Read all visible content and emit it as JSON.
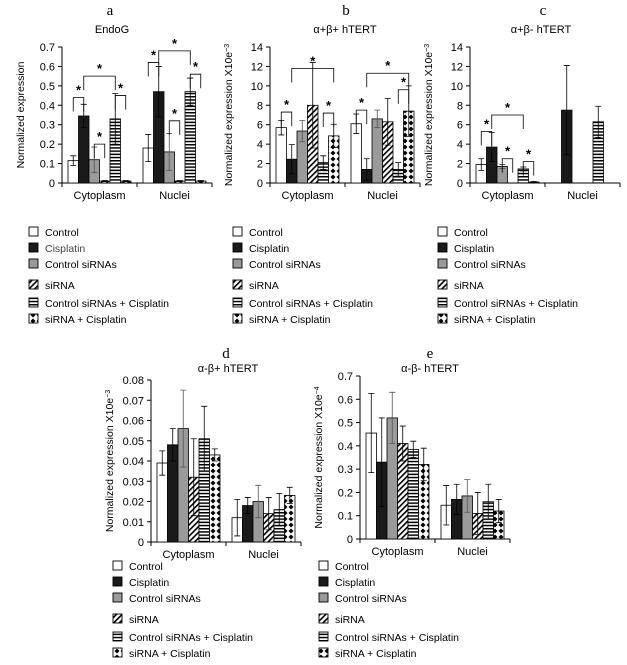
{
  "legend_labels": [
    "Control",
    "Cisplatin",
    "Control siRNAs",
    "siRNA",
    "Control siRNAs + Cisplatin",
    "siRNA + Cisplatin"
  ],
  "series_styles": {
    "Control": "#ffffff",
    "Cisplatin": "#1a1a1a",
    "Control siRNAs": "#9a9a9a",
    "siRNA": "diagonal-hatch",
    "Control siRNAs + Cisplatin": "horizontal-stripes",
    "siRNA + Cisplatin": "diamond-grid"
  },
  "chart_data": [
    {
      "panel": "a",
      "type": "bar",
      "title": "EndoG",
      "ylabel": "Normalized expression",
      "ylabel_sup": "",
      "ylim": [
        0,
        0.7
      ],
      "ytick_step": 0.1,
      "ytick_decimals": 1,
      "categories": [
        "Cytoplasm",
        "Nuclei"
      ],
      "series": [
        {
          "name": "Control",
          "values": [
            0.115,
            0.18
          ],
          "err": [
            0.025,
            0.07
          ]
        },
        {
          "name": "Cisplatin",
          "values": [
            0.345,
            0.47
          ],
          "err": [
            0.06,
            0.13
          ]
        },
        {
          "name": "Control siRNAs",
          "values": [
            0.12,
            0.16
          ],
          "err": [
            0.065,
            0.095
          ]
        },
        {
          "name": "siRNA",
          "values": [
            0.01,
            0.01
          ],
          "err": [
            0.003,
            0.003
          ]
        },
        {
          "name": "Control siRNAs + Cisplatin",
          "values": [
            0.33,
            0.47
          ],
          "err": [
            0.13,
            0.07
          ]
        },
        {
          "name": "siRNA + Cisplatin",
          "values": [
            0.01,
            0.01
          ],
          "err": [
            0.003,
            0.003
          ]
        }
      ],
      "significance": [
        [
          0,
          0,
          1,
          0.44
        ],
        [
          0,
          1,
          4,
          0.55
        ],
        [
          0,
          2,
          3,
          0.2
        ],
        [
          0,
          4,
          5,
          0.45
        ],
        [
          1,
          0,
          1,
          0.62
        ],
        [
          1,
          1,
          4,
          0.68
        ],
        [
          1,
          2,
          3,
          0.32
        ],
        [
          1,
          4,
          5,
          0.56
        ]
      ],
      "significance_mark": "*"
    },
    {
      "panel": "b",
      "type": "bar",
      "title": "α+β+ hTERT",
      "ylabel": "Normalized expression X10e",
      "ylabel_sup": "−3",
      "ylim": [
        0,
        14
      ],
      "ytick_step": 2,
      "ytick_decimals": 0,
      "categories": [
        "Cytoplasm",
        "Nuclei"
      ],
      "series": [
        {
          "name": "Control",
          "values": [
            5.7,
            6.1
          ],
          "err": [
            0.75,
            1.0
          ]
        },
        {
          "name": "Cisplatin",
          "values": [
            2.45,
            1.4
          ],
          "err": [
            1.5,
            1.1
          ]
        },
        {
          "name": "Control siRNAs",
          "values": [
            5.35,
            6.6
          ],
          "err": [
            1.1,
            0.9
          ]
        },
        {
          "name": "siRNA",
          "values": [
            8.0,
            6.3
          ],
          "err": [
            4.4,
            2.4
          ]
        },
        {
          "name": "Control siRNAs + Cisplatin",
          "values": [
            2.1,
            1.4
          ],
          "err": [
            0.7,
            0.7
          ]
        },
        {
          "name": "siRNA + Cisplatin",
          "values": [
            4.85,
            7.4
          ],
          "err": [
            1.2,
            2.6
          ]
        }
      ],
      "significance": [
        [
          0,
          0,
          1,
          7.3
        ],
        [
          0,
          1,
          5,
          11.8
        ],
        [
          0,
          4,
          5,
          7.2
        ],
        [
          1,
          0,
          1,
          7.5
        ],
        [
          1,
          1,
          5,
          11.3
        ],
        [
          1,
          4,
          5,
          9.6
        ]
      ],
      "significance_mark": "*"
    },
    {
      "panel": "c",
      "type": "bar",
      "title": "α+β- hTERT",
      "ylabel": "Normalized expression X10e",
      "ylabel_sup": "−3",
      "ylim": [
        0,
        14
      ],
      "ytick_step": 2,
      "ytick_decimals": 0,
      "categories": [
        "Cytoplasm",
        "Nuclei"
      ],
      "series": [
        {
          "name": "Control",
          "values": [
            1.9,
            0
          ],
          "err": [
            0.6,
            0
          ]
        },
        {
          "name": "Cisplatin",
          "values": [
            3.7,
            7.5
          ],
          "err": [
            1.5,
            4.6
          ]
        },
        {
          "name": "Control siRNAs",
          "values": [
            1.7,
            0
          ],
          "err": [
            0.2,
            0
          ]
        },
        {
          "name": "siRNA",
          "values": [
            0,
            0
          ],
          "err": [
            0,
            0
          ]
        },
        {
          "name": "Control siRNAs + Cisplatin",
          "values": [
            1.45,
            6.3
          ],
          "err": [
            0.2,
            1.6
          ]
        },
        {
          "name": "siRNA + Cisplatin",
          "values": [
            0.1,
            0
          ],
          "err": [
            0.05,
            0
          ]
        }
      ],
      "significance": [
        [
          0,
          0,
          1,
          5.3
        ],
        [
          0,
          1,
          4,
          7.0
        ],
        [
          0,
          2,
          3,
          2.5
        ],
        [
          0,
          4,
          5,
          2.2
        ]
      ],
      "significance_mark": "*"
    },
    {
      "panel": "d",
      "type": "bar",
      "title": "α-β+ hTERT",
      "ylabel": "Normalized expression X10e",
      "ylabel_sup": "−3",
      "ylim": [
        0,
        0.08
      ],
      "ytick_step": 0.01,
      "ytick_decimals": 2,
      "categories": [
        "Cytoplasm",
        "Nuclei"
      ],
      "series": [
        {
          "name": "Control",
          "values": [
            0.039,
            0.012
          ],
          "err": [
            0.006,
            0.009
          ]
        },
        {
          "name": "Cisplatin",
          "values": [
            0.048,
            0.018
          ],
          "err": [
            0.008,
            0.004
          ]
        },
        {
          "name": "Control siRNAs",
          "values": [
            0.056,
            0.02
          ],
          "err": [
            0.019,
            0.008
          ]
        },
        {
          "name": "siRNA",
          "values": [
            0.032,
            0.014
          ],
          "err": [
            0.019,
            0.008
          ]
        },
        {
          "name": "Control siRNAs + Cisplatin",
          "values": [
            0.051,
            0.016
          ],
          "err": [
            0.016,
            0.008
          ]
        },
        {
          "name": "siRNA + Cisplatin",
          "values": [
            0.043,
            0.023
          ],
          "err": [
            0.003,
            0.004
          ]
        }
      ],
      "significance": [],
      "significance_mark": "*"
    },
    {
      "panel": "e",
      "type": "bar",
      "title": "α-β- hTERT",
      "ylabel": "Normalized expression X10e",
      "ylabel_sup": "−4",
      "ylim": [
        0,
        0.7
      ],
      "ytick_step": 0.1,
      "ytick_decimals": 1,
      "categories": [
        "Cytoplasm",
        "Nuclei"
      ],
      "series": [
        {
          "name": "Control",
          "values": [
            0.455,
            0.145
          ],
          "err": [
            0.17,
            0.085
          ]
        },
        {
          "name": "Cisplatin",
          "values": [
            0.33,
            0.17
          ],
          "err": [
            0.19,
            0.065
          ]
        },
        {
          "name": "Control siRNAs",
          "values": [
            0.52,
            0.185
          ],
          "err": [
            0.11,
            0.07
          ]
        },
        {
          "name": "siRNA",
          "values": [
            0.41,
            0.11
          ],
          "err": [
            0.075,
            0.09
          ]
        },
        {
          "name": "Control siRNAs + Cisplatin",
          "values": [
            0.385,
            0.16
          ],
          "err": [
            0.035,
            0.075
          ]
        },
        {
          "name": "siRNA + Cisplatin",
          "values": [
            0.32,
            0.12
          ],
          "err": [
            0.07,
            0.05
          ]
        }
      ],
      "significance": [],
      "significance_mark": "*"
    }
  ]
}
